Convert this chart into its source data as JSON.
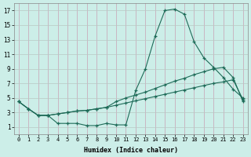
{
  "xlabel": "Humidex (Indice chaleur)",
  "background_color": "#cceee8",
  "grid_color_v": "#c8a0b4",
  "grid_color_h": "#b8c8c4",
  "line_color": "#1e6b58",
  "xlim": [
    -0.5,
    23.5
  ],
  "ylim": [
    0,
    18
  ],
  "xticks": [
    0,
    1,
    2,
    3,
    4,
    5,
    6,
    7,
    8,
    9,
    10,
    11,
    12,
    13,
    14,
    15,
    16,
    17,
    18,
    19,
    20,
    21,
    22,
    23
  ],
  "yticks": [
    1,
    3,
    5,
    7,
    9,
    11,
    13,
    15,
    17
  ],
  "line1_x": [
    0,
    1,
    2,
    3,
    4,
    5,
    6,
    7,
    8,
    9,
    10,
    11,
    12,
    13,
    14,
    15,
    16,
    17,
    18,
    19,
    20,
    21,
    22,
    23
  ],
  "line1_y": [
    4.5,
    3.5,
    2.6,
    2.6,
    1.5,
    1.5,
    1.5,
    1.2,
    1.2,
    1.5,
    1.3,
    1.3,
    6.0,
    9.0,
    13.5,
    17.0,
    17.2,
    16.5,
    12.7,
    10.5,
    9.2,
    7.8,
    6.2,
    5.0
  ],
  "line2_x": [
    0,
    1,
    2,
    3,
    4,
    5,
    6,
    7,
    8,
    9,
    10,
    11,
    12,
    13,
    14,
    15,
    16,
    17,
    18,
    19,
    20,
    21,
    22,
    23
  ],
  "line2_y": [
    4.5,
    3.5,
    2.6,
    2.6,
    2.8,
    3.0,
    3.2,
    3.3,
    3.5,
    3.7,
    4.5,
    5.0,
    5.4,
    5.8,
    6.3,
    6.8,
    7.3,
    7.7,
    8.2,
    8.6,
    9.0,
    9.2,
    7.8,
    4.5
  ],
  "line3_x": [
    0,
    1,
    2,
    3,
    4,
    5,
    6,
    7,
    8,
    9,
    10,
    11,
    12,
    13,
    14,
    15,
    16,
    17,
    18,
    19,
    20,
    21,
    22,
    23
  ],
  "line3_y": [
    4.5,
    3.5,
    2.6,
    2.6,
    2.8,
    3.0,
    3.2,
    3.3,
    3.5,
    3.7,
    4.0,
    4.3,
    4.6,
    4.9,
    5.2,
    5.5,
    5.8,
    6.1,
    6.4,
    6.7,
    7.0,
    7.2,
    7.5,
    4.8
  ]
}
